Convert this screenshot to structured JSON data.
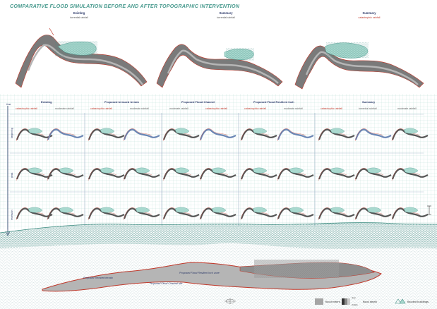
{
  "title": "COMPARATIVE FLOOD SIMULATION BEFORE AND AFTER TOPOGRAPHIC INTERVENTION",
  "top_panels": [
    {
      "heading": "Existing",
      "subtitle": "torrential rainfall",
      "subtitle_color": "grey"
    },
    {
      "heading": "Summary",
      "subtitle": "torrential rainfall",
      "subtitle_color": "grey"
    },
    {
      "heading": "Summary",
      "subtitle": "catastrophic rainfall",
      "subtitle_color": "red"
    }
  ],
  "timeline": {
    "axis_label": "time",
    "row_labels": [
      "beginning",
      "peak",
      "recession"
    ]
  },
  "scenarios": [
    {
      "heading": "Existing",
      "sub_left": "catastrophic rainfall",
      "sub_right": "moderate rainfall"
    },
    {
      "heading": "Proposed terraced terrain",
      "sub_left": "catastrophic rainfall",
      "sub_right": "moderate rainfall"
    },
    {
      "heading": "Proposed Flood Channel",
      "sub_left": "moderate rainfall",
      "sub_right": "catastrophic rainfall"
    },
    {
      "heading": "Proposed Flood Resilient Inch",
      "sub_left": "catastrophic rainfall",
      "sub_right": "moderate rainfall"
    },
    {
      "heading": "Summary",
      "sub_left": "catastrophic rainfall",
      "sub_right": "torrential rainfall",
      "sub_far": "moderate rainfall"
    }
  ],
  "terrain_labels": {
    "terraced": "Proposed Terraced terrain",
    "resilient": "Proposed Flood Resilient Inch zone",
    "channel": "Proposed Flood Channel site"
  },
  "legend": {
    "extent": "flood extent",
    "depth": "flood depth",
    "depth_deep": "deep",
    "depth_shallow": "shallow",
    "buildings": "flooded buildings"
  },
  "colors": {
    "title": "#4a9b8f",
    "heading": "#2d3a6a",
    "catastrophic": "#c0392b",
    "teal": "#3b8a7f",
    "river_grey": "#6b6b6b",
    "outline_red": "#c0392b"
  },
  "icons": [
    "compass-icon",
    "scale-bar-icon"
  ]
}
